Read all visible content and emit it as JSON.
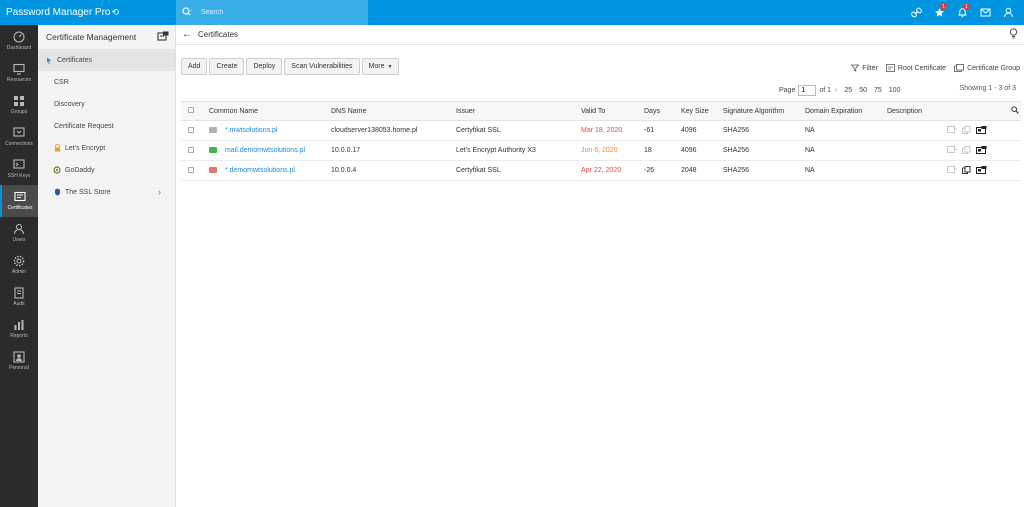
{
  "app": {
    "title": "Password Manager Pro"
  },
  "search": {
    "placeholder": "Search"
  },
  "top_icons": [
    {
      "name": "link-icon",
      "badge": ""
    },
    {
      "name": "star-notification-icon",
      "badge": "1"
    },
    {
      "name": "bell-icon",
      "badge": "1"
    },
    {
      "name": "mail-icon",
      "badge": ""
    },
    {
      "name": "user-icon",
      "badge": ""
    }
  ],
  "leftnav": [
    {
      "key": "dashboard",
      "label": "Dashboard"
    },
    {
      "key": "resources",
      "label": "Resources"
    },
    {
      "key": "groups",
      "label": "Groups"
    },
    {
      "key": "connections",
      "label": "Connections"
    },
    {
      "key": "ssh-keys",
      "label": "SSH Keys"
    },
    {
      "key": "certificates",
      "label": "Certificates",
      "active": true
    },
    {
      "key": "users",
      "label": "Users"
    },
    {
      "key": "admin",
      "label": "Admin"
    },
    {
      "key": "audit",
      "label": "Audit"
    },
    {
      "key": "reports",
      "label": "Reports"
    },
    {
      "key": "personal",
      "label": "Personal"
    }
  ],
  "sidebar": {
    "title": "Certificate Management",
    "items": [
      {
        "label": "Certificates"
      },
      {
        "label": "CSR"
      },
      {
        "label": "Discovery"
      },
      {
        "label": "Certificate Request"
      },
      {
        "label": "Let's Encrypt"
      },
      {
        "label": "GoDaddy"
      },
      {
        "label": "The SSL Store"
      }
    ]
  },
  "main": {
    "title": "Certificates",
    "toolbar": {
      "add": "Add",
      "create": "Create",
      "deploy": "Deploy",
      "scan": "Scan Vulnerabilities",
      "more": "More"
    },
    "filter": "Filter",
    "root_certificate": "Root Certificate",
    "certificate_group": "Certificate Group",
    "pager": {
      "page_label": "Page",
      "page_value": "1",
      "of_label": "of 1",
      "sizes": [
        "25",
        "50",
        "75",
        "100"
      ]
    },
    "showing": "Showing 1 - 3 of 3"
  },
  "table": {
    "headers": [
      "Common Name",
      "DNS Name",
      "Issuer",
      "Valid To",
      "Days",
      "Key Size",
      "Signature Algorithm",
      "Domain Expiration",
      "Description"
    ],
    "rows": [
      {
        "common_name": "*.mwtsolutions.pl",
        "dns": "cloudserver138053.home.pl",
        "issuer": "Certyfikat SSL",
        "valid_to": "Mar 18, 2020",
        "days": "-61",
        "key_size": "4096",
        "sig": "SHA256",
        "domain_exp": "NA",
        "description": "",
        "status_color": "#9e9e9e",
        "date_color": "#e04b4b"
      },
      {
        "common_name": "mail.demomwtsolutions.pl",
        "dns": "10.0.0.17",
        "issuer": "Let's Encrypt Authority X3",
        "valid_to": "Jun 6, 2020",
        "days": "18",
        "key_size": "4096",
        "sig": "SHA256",
        "domain_exp": "NA",
        "description": "",
        "status_color": "#4caf50",
        "date_color": "#ef8a2a"
      },
      {
        "common_name": "*.demomwtsolutions.pl",
        "dns": "10.0.0.4",
        "issuer": "Certyfikat SSL",
        "valid_to": "Apr 22, 2020",
        "days": "-26",
        "key_size": "2048",
        "sig": "SHA256",
        "domain_exp": "NA",
        "description": "",
        "status_color": "#e57373",
        "date_color": "#e04b4b"
      }
    ]
  },
  "colors": {
    "primary": "#0095e0",
    "nav_bg": "#2b2b2b",
    "link": "#1f8ad6"
  }
}
